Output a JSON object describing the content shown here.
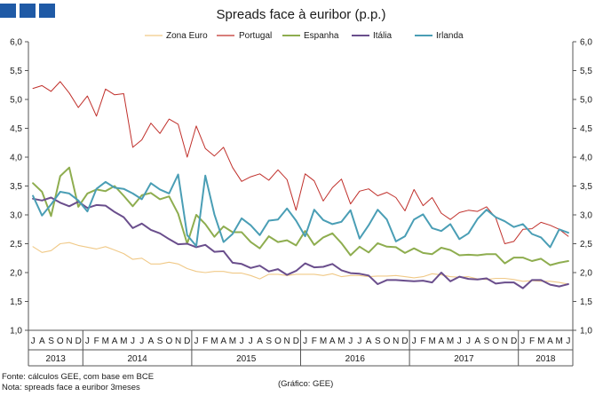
{
  "chart_data": {
    "type": "line",
    "title": "Spreads face à euribor (p.p.)",
    "xlabel": "",
    "ylabel": "",
    "ylim": [
      1.0,
      6.0
    ],
    "yticks": [
      "1,0",
      "1,5",
      "2,0",
      "2,5",
      "3,0",
      "3,5",
      "4,0",
      "4,5",
      "5,0",
      "5,5",
      "6,0"
    ],
    "ytick_values": [
      1.0,
      1.5,
      2.0,
      2.5,
      3.0,
      3.5,
      4.0,
      4.5,
      5.0,
      5.5,
      6.0
    ],
    "legend_position": "top",
    "months": [
      "J",
      "A",
      "S",
      "O",
      "N",
      "D",
      "J",
      "F",
      "M",
      "A",
      "M",
      "J",
      "J",
      "A",
      "S",
      "O",
      "N",
      "D",
      "J",
      "F",
      "M",
      "A",
      "M",
      "J",
      "J",
      "A",
      "S",
      "O",
      "N",
      "D",
      "J",
      "F",
      "M",
      "A",
      "M",
      "J",
      "J",
      "A",
      "S",
      "O",
      "N",
      "D",
      "J",
      "F",
      "M",
      "A",
      "M",
      "J",
      "J",
      "A",
      "S",
      "O",
      "N",
      "D",
      "J",
      "F",
      "M",
      "A",
      "M",
      "J"
    ],
    "years": [
      {
        "label": "2013",
        "start": 0,
        "count": 6
      },
      {
        "label": "2014",
        "start": 6,
        "count": 12
      },
      {
        "label": "2015",
        "start": 18,
        "count": 12
      },
      {
        "label": "2016",
        "start": 30,
        "count": 12
      },
      {
        "label": "2017",
        "start": 42,
        "count": 12
      },
      {
        "label": "2018",
        "start": 54,
        "count": 6
      }
    ],
    "series": [
      {
        "name": "Zona Euro",
        "color": "#f0c987",
        "width": 1.1,
        "values": [
          2.45,
          2.35,
          2.38,
          2.5,
          2.52,
          2.47,
          2.44,
          2.41,
          2.45,
          2.39,
          2.33,
          2.23,
          2.25,
          2.15,
          2.15,
          2.18,
          2.15,
          2.07,
          2.02,
          2.0,
          2.02,
          2.02,
          1.99,
          1.99,
          1.95,
          1.89,
          1.97,
          1.97,
          1.95,
          1.97,
          1.97,
          1.97,
          1.95,
          1.98,
          1.93,
          1.95,
          1.95,
          1.93,
          1.94,
          1.94,
          1.95,
          1.93,
          1.91,
          1.93,
          1.98,
          1.96,
          1.93,
          1.92,
          1.93,
          1.89,
          1.88,
          1.9,
          1.9,
          1.88,
          1.85,
          1.86,
          1.85,
          1.85,
          1.83,
          1.8
        ]
      },
      {
        "name": "Portugal",
        "color": "#c0302b",
        "width": 1.0,
        "values": [
          5.19,
          5.24,
          5.14,
          5.31,
          5.11,
          4.86,
          5.06,
          4.71,
          5.18,
          5.08,
          5.1,
          4.17,
          4.3,
          4.59,
          4.41,
          4.66,
          4.57,
          4.0,
          4.54,
          4.15,
          4.02,
          4.17,
          3.82,
          3.58,
          3.66,
          3.71,
          3.6,
          3.78,
          3.61,
          3.08,
          3.71,
          3.59,
          3.24,
          3.47,
          3.62,
          3.19,
          3.41,
          3.45,
          3.33,
          3.39,
          3.3,
          3.07,
          3.44,
          3.16,
          3.3,
          3.03,
          2.92,
          3.04,
          3.08,
          3.06,
          3.14,
          2.95,
          2.5,
          2.54,
          2.75,
          2.76,
          2.87,
          2.82,
          2.75,
          2.63
        ]
      },
      {
        "name": "Espanha",
        "color": "#8ead4f",
        "width": 2.0,
        "values": [
          3.55,
          3.4,
          2.98,
          3.67,
          3.82,
          3.14,
          3.37,
          3.44,
          3.41,
          3.5,
          3.33,
          3.15,
          3.34,
          3.38,
          3.27,
          3.32,
          3.02,
          2.5,
          3.0,
          2.84,
          2.62,
          2.8,
          2.7,
          2.7,
          2.53,
          2.42,
          2.63,
          2.53,
          2.56,
          2.47,
          2.72,
          2.48,
          2.61,
          2.68,
          2.51,
          2.3,
          2.45,
          2.35,
          2.51,
          2.45,
          2.44,
          2.34,
          2.42,
          2.34,
          2.32,
          2.43,
          2.39,
          2.3,
          2.31,
          2.3,
          2.32,
          2.32,
          2.16,
          2.26,
          2.26,
          2.2,
          2.24,
          2.13,
          2.17,
          2.2
        ]
      },
      {
        "name": "Itália",
        "color": "#6a4e8c",
        "width": 2.0,
        "values": [
          3.28,
          3.25,
          3.3,
          3.21,
          3.15,
          3.23,
          3.12,
          3.17,
          3.16,
          3.05,
          2.96,
          2.77,
          2.85,
          2.74,
          2.68,
          2.58,
          2.49,
          2.5,
          2.44,
          2.48,
          2.36,
          2.37,
          2.17,
          2.15,
          2.08,
          2.12,
          2.02,
          2.06,
          1.96,
          2.03,
          2.16,
          2.09,
          2.1,
          2.15,
          2.04,
          1.99,
          1.98,
          1.95,
          1.8,
          1.87,
          1.87,
          1.86,
          1.85,
          1.86,
          1.83,
          2.0,
          1.85,
          1.93,
          1.89,
          1.88,
          1.9,
          1.81,
          1.83,
          1.83,
          1.73,
          1.87,
          1.87,
          1.79,
          1.76,
          1.8
        ]
      },
      {
        "name": "Irlanda",
        "color": "#4a9eb5",
        "width": 2.0,
        "values": [
          3.33,
          2.99,
          3.18,
          3.4,
          3.37,
          3.25,
          3.06,
          3.45,
          3.57,
          3.47,
          3.45,
          3.37,
          3.27,
          3.55,
          3.44,
          3.37,
          3.7,
          2.65,
          2.46,
          3.68,
          3.01,
          2.53,
          2.67,
          2.94,
          2.82,
          2.65,
          2.9,
          2.92,
          3.11,
          2.9,
          2.63,
          3.09,
          2.91,
          2.84,
          2.88,
          3.08,
          2.59,
          2.82,
          3.09,
          2.92,
          2.54,
          2.63,
          2.92,
          3.01,
          2.77,
          2.72,
          2.84,
          2.58,
          2.68,
          2.93,
          3.09,
          2.96,
          2.89,
          2.79,
          2.84,
          2.67,
          2.61,
          2.44,
          2.75,
          2.69
        ]
      }
    ]
  },
  "footer": {
    "source": "Fonte: cálculos GEE, com base em BCE",
    "note": "Nota: spreads face a euribor 3meses",
    "credit": "(Gráfico: GEE)"
  }
}
